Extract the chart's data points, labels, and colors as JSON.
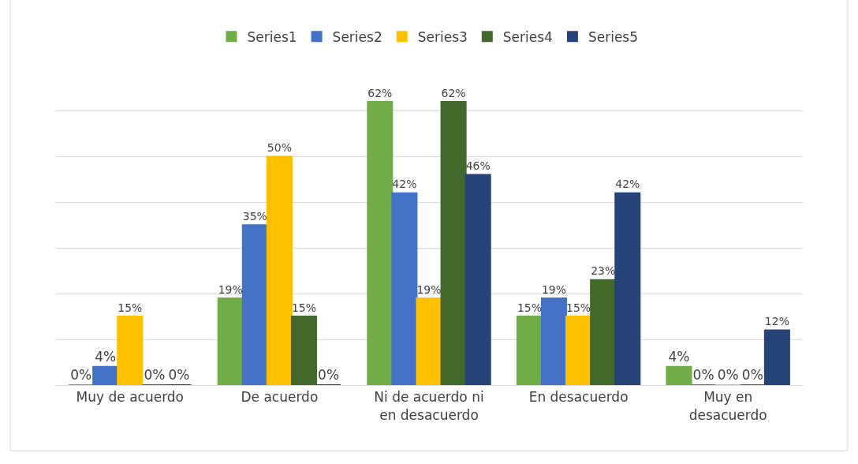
{
  "chart_data": {
    "type": "bar",
    "categories": [
      "Muy de acuerdo",
      "De acuerdo",
      "Ni de acuerdo ni en desacuerdo",
      "En desacuerdo",
      "Muy en desacuerdo"
    ],
    "series": [
      {
        "name": "Series1",
        "color": "#70ad47",
        "values": [
          0,
          19,
          62,
          15,
          4
        ],
        "value_labels": [
          "0%",
          "19%",
          "62%",
          "15%",
          "4%"
        ]
      },
      {
        "name": "Series2",
        "color": "#4472c4",
        "values": [
          4,
          35,
          42,
          19,
          0
        ],
        "value_labels": [
          "4%",
          "35%",
          "42%",
          "19%",
          "0%"
        ]
      },
      {
        "name": "Series3",
        "color": "#ffc000",
        "values": [
          15,
          50,
          19,
          15,
          0
        ],
        "value_labels": [
          "15%",
          "50%",
          "19%",
          "15%",
          "0%"
        ]
      },
      {
        "name": "Series4",
        "color": "#43682b",
        "values": [
          0,
          15,
          62,
          23,
          0
        ],
        "value_labels": [
          "0%",
          "15%",
          "62%",
          "23%",
          "0%"
        ]
      },
      {
        "name": "Series5",
        "color": "#264478",
        "values": [
          0,
          0,
          46,
          42,
          12
        ],
        "value_labels": [
          "0%",
          "0%",
          "46%",
          "42%",
          "12%"
        ]
      }
    ],
    "grid": "y",
    "legend": "top"
  }
}
